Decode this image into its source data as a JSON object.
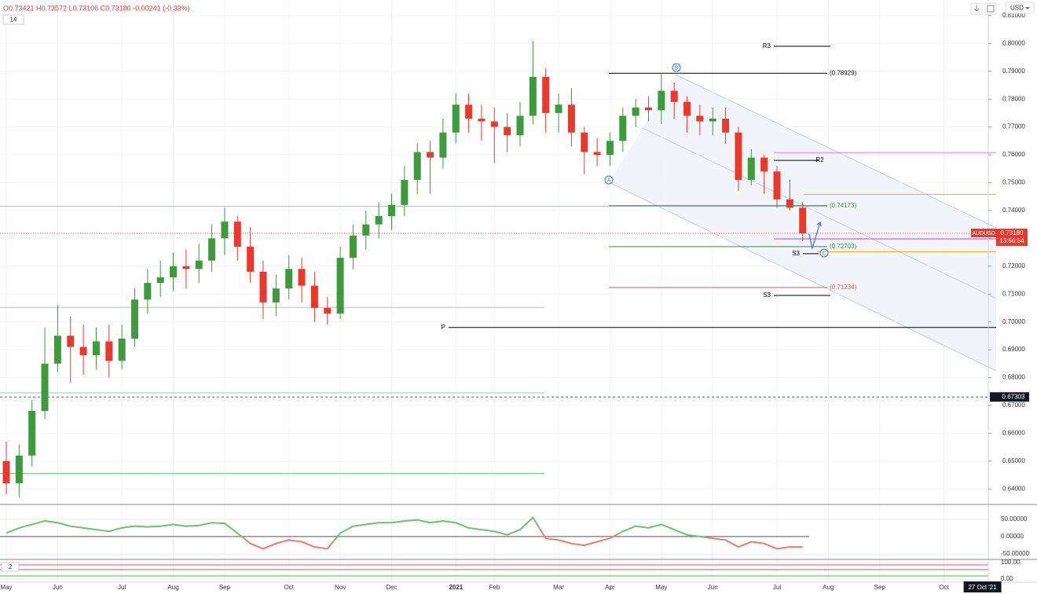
{
  "header": {
    "ohlc": "O0.73421 H0.73572 L0.73106 C0.73180 -0.00241 (-0.33%)",
    "badge": "14",
    "currency": "USD"
  },
  "chart_data": [
    {
      "type": "candlestick",
      "categories": [
        "May",
        null,
        null,
        null,
        "Jun",
        null,
        null,
        null,
        null,
        "Jul",
        null,
        null,
        null,
        "Aug",
        null,
        null,
        null,
        "Sep",
        null,
        null,
        null,
        null,
        "Oct",
        null,
        null,
        null,
        "Nov",
        null,
        null,
        null,
        "Dec",
        null,
        null,
        null,
        null,
        "2021",
        null,
        null,
        "Feb",
        null,
        null,
        null,
        null,
        "Mar",
        null,
        null,
        null,
        "Apr",
        null,
        null,
        null,
        "May",
        null,
        null,
        null,
        "Jun",
        null,
        null,
        null,
        null,
        "Jul",
        null,
        null,
        null,
        "Aug",
        null,
        null,
        null,
        "Sep",
        null,
        null,
        null,
        null,
        "Oct",
        null,
        null,
        "27 Oct '21"
      ],
      "open": [
        0.65,
        0.642,
        0.652,
        0.668,
        0.685,
        0.695,
        0.691,
        0.688,
        0.693,
        0.686,
        0.694,
        0.708,
        0.714,
        0.716,
        0.72,
        0.719,
        0.722,
        0.73,
        0.736,
        0.727,
        0.718,
        0.707,
        0.712,
        0.719,
        0.713,
        0.705,
        0.703,
        0.723,
        0.731,
        0.735,
        0.738,
        0.742,
        0.751,
        0.761,
        0.759,
        0.768,
        0.778,
        0.773,
        0.772,
        0.77,
        0.767,
        0.774,
        0.788,
        0.775,
        0.778,
        0.768,
        0.761,
        0.76,
        0.765,
        0.774,
        0.777,
        0.776,
        0.783,
        0.779,
        0.774,
        0.772,
        0.773,
        0.768,
        0.751,
        0.759,
        0.754,
        0.744,
        0.741,
        null,
        null,
        null,
        null,
        null,
        null,
        null,
        null,
        null,
        null,
        null,
        null,
        null,
        null
      ],
      "high": [
        0.657,
        0.656,
        0.672,
        0.698,
        0.706,
        0.702,
        0.699,
        0.698,
        0.699,
        0.699,
        0.712,
        0.719,
        0.722,
        0.725,
        0.726,
        0.728,
        0.735,
        0.741,
        0.738,
        0.734,
        0.722,
        0.717,
        0.724,
        0.723,
        0.718,
        0.709,
        0.727,
        0.735,
        0.74,
        0.743,
        0.746,
        0.756,
        0.764,
        0.765,
        0.773,
        0.782,
        0.782,
        0.778,
        0.777,
        0.775,
        0.779,
        0.801,
        0.791,
        0.782,
        0.784,
        0.77,
        0.766,
        0.768,
        0.777,
        0.78,
        0.781,
        0.789,
        0.786,
        0.781,
        0.778,
        0.777,
        0.777,
        0.77,
        0.762,
        0.76,
        0.756,
        0.751,
        0.743,
        null,
        null,
        null,
        null,
        null,
        null,
        null,
        null,
        null,
        null,
        null,
        null,
        null,
        null
      ],
      "low": [
        0.638,
        0.637,
        0.648,
        0.665,
        0.682,
        0.678,
        0.681,
        0.683,
        0.68,
        0.683,
        0.691,
        0.703,
        0.709,
        0.711,
        0.712,
        0.714,
        0.718,
        0.724,
        0.722,
        0.714,
        0.701,
        0.702,
        0.708,
        0.707,
        0.7,
        0.699,
        0.701,
        0.719,
        0.726,
        0.73,
        0.733,
        0.738,
        0.746,
        0.746,
        0.755,
        0.764,
        0.768,
        0.765,
        0.757,
        0.761,
        0.763,
        0.771,
        0.768,
        0.768,
        0.763,
        0.753,
        0.756,
        0.756,
        0.761,
        0.77,
        0.772,
        0.771,
        0.773,
        0.768,
        0.767,
        0.767,
        0.764,
        0.747,
        0.749,
        0.746,
        0.741,
        0.74,
        0.729,
        null,
        null,
        null,
        null,
        null,
        null,
        null,
        null,
        null,
        null,
        null,
        null,
        null,
        null
      ],
      "close": [
        0.642,
        0.652,
        0.668,
        0.685,
        0.695,
        0.691,
        0.688,
        0.693,
        0.686,
        0.694,
        0.708,
        0.714,
        0.716,
        0.72,
        0.719,
        0.722,
        0.73,
        0.736,
        0.727,
        0.718,
        0.707,
        0.712,
        0.719,
        0.713,
        0.705,
        0.703,
        0.723,
        0.731,
        0.735,
        0.738,
        0.742,
        0.751,
        0.761,
        0.759,
        0.768,
        0.778,
        0.773,
        0.772,
        0.77,
        0.767,
        0.774,
        0.788,
        0.775,
        0.778,
        0.768,
        0.761,
        0.76,
        0.765,
        0.774,
        0.777,
        0.776,
        0.783,
        0.779,
        0.774,
        0.772,
        0.773,
        0.768,
        0.751,
        0.759,
        0.754,
        0.744,
        0.741,
        0.7318,
        null,
        null,
        null,
        null,
        null,
        null,
        null,
        null,
        null,
        null,
        null,
        null,
        null,
        null
      ],
      "up_color": "#3d9a3d",
      "down_color": "#e8392f",
      "ylim": [
        0.635,
        0.8156
      ],
      "yticks": [
        {
          "value": 0.81,
          "label": "0.81000"
        },
        {
          "value": 0.8,
          "label": "0.80000"
        },
        {
          "value": 0.79,
          "label": "0.79000"
        },
        {
          "value": 0.78,
          "label": "0.78000"
        },
        {
          "value": 0.77,
          "label": "0.77000"
        },
        {
          "value": 0.76,
          "label": "0.76000"
        },
        {
          "value": 0.75,
          "label": "0.75000"
        },
        {
          "value": 0.74,
          "label": "0.74000"
        },
        {
          "value": 0.73,
          "label": "0.73000"
        },
        {
          "value": 0.72,
          "label": "0.72000"
        },
        {
          "value": 0.71,
          "label": "0.71000"
        },
        {
          "value": 0.7,
          "label": "0.70000"
        },
        {
          "value": 0.69,
          "label": "0.69000"
        },
        {
          "value": 0.68,
          "label": "0.68000"
        },
        {
          "value": 0.67,
          "label": "0.67000"
        },
        {
          "value": 0.66,
          "label": "0.66000"
        },
        {
          "value": 0.65,
          "label": "0.65000"
        },
        {
          "value": 0.64,
          "label": "0.64000"
        }
      ],
      "grid": true,
      "levels": [
        {
          "value": 0.799,
          "label": "R3",
          "color": "#000000"
        },
        {
          "value": 0.78929,
          "label": "(0.78929)",
          "color": "#000000"
        },
        {
          "value": 0.7608,
          "color": "#d580e8"
        },
        {
          "value": 0.758,
          "label": "R2",
          "color": "#000000"
        },
        {
          "value": 0.7458,
          "color": "#f5a623"
        },
        {
          "value": 0.7415,
          "color": "#b0b8c8"
        },
        {
          "value": 0.74173,
          "label": "(0.74173)",
          "color": "#3c8c3c"
        },
        {
          "value": 0.7298,
          "color": "#c040d8"
        },
        {
          "value": 0.72703,
          "label": "(0.72703)",
          "color": "#3c8c3c"
        },
        {
          "value": 0.7252,
          "color": "#f5a623"
        },
        {
          "value": 0.7245,
          "label": "S3",
          "color": "#000000"
        },
        {
          "value": 0.71234,
          "label": "(0.71234)",
          "color": "#e05a5a"
        },
        {
          "value": 0.7095,
          "label": "S3",
          "color": "#000000"
        },
        {
          "value": 0.7052,
          "color": "#b8b8e0"
        },
        {
          "value": 0.698,
          "label": "P",
          "color": "#000000"
        },
        {
          "value": 0.6745,
          "color": "#99cc99"
        },
        {
          "value": 0.6455,
          "color": "#66bb66"
        }
      ],
      "waves": [
        "A",
        "B",
        "C"
      ],
      "last_price": {
        "symbol": "AUDUSD",
        "value": 0.7318,
        "label": "0.73180",
        "countdown": "13:56:54",
        "color": "#e8392f"
      },
      "alert": {
        "value": 0.67303,
        "label": "0.67303"
      }
    },
    {
      "type": "oscillator",
      "values": [
        10,
        25,
        35,
        45,
        40,
        30,
        25,
        20,
        15,
        25,
        30,
        28,
        30,
        35,
        30,
        32,
        40,
        38,
        10,
        -20,
        -35,
        -20,
        -10,
        -15,
        -30,
        -35,
        10,
        30,
        35,
        40,
        40,
        45,
        48,
        40,
        45,
        40,
        25,
        20,
        15,
        5,
        20,
        55,
        -5,
        -10,
        -20,
        -25,
        -15,
        -5,
        15,
        30,
        25,
        35,
        20,
        5,
        0,
        -5,
        -10,
        -30,
        -15,
        -20,
        -35,
        -30,
        -30,
        null,
        null,
        null,
        null,
        null,
        null,
        null,
        null,
        null,
        null,
        null,
        null,
        null,
        null
      ],
      "pos_color": "#6cc16c",
      "neg_color": "#ef7a6a",
      "ylim": [
        -66,
        86
      ],
      "yticks": [
        {
          "value": 50,
          "label": "50.00000"
        },
        {
          "value": 0,
          "label": "0.00000"
        },
        {
          "value": -50,
          "label": "-50.00000"
        }
      ]
    },
    {
      "type": "pane",
      "badge": "2",
      "ylim": [
        -24,
        114
      ],
      "yticks": [
        {
          "value": 100,
          "label": "100.00"
        },
        {
          "value": 0,
          "label": "0.00"
        }
      ]
    }
  ]
}
